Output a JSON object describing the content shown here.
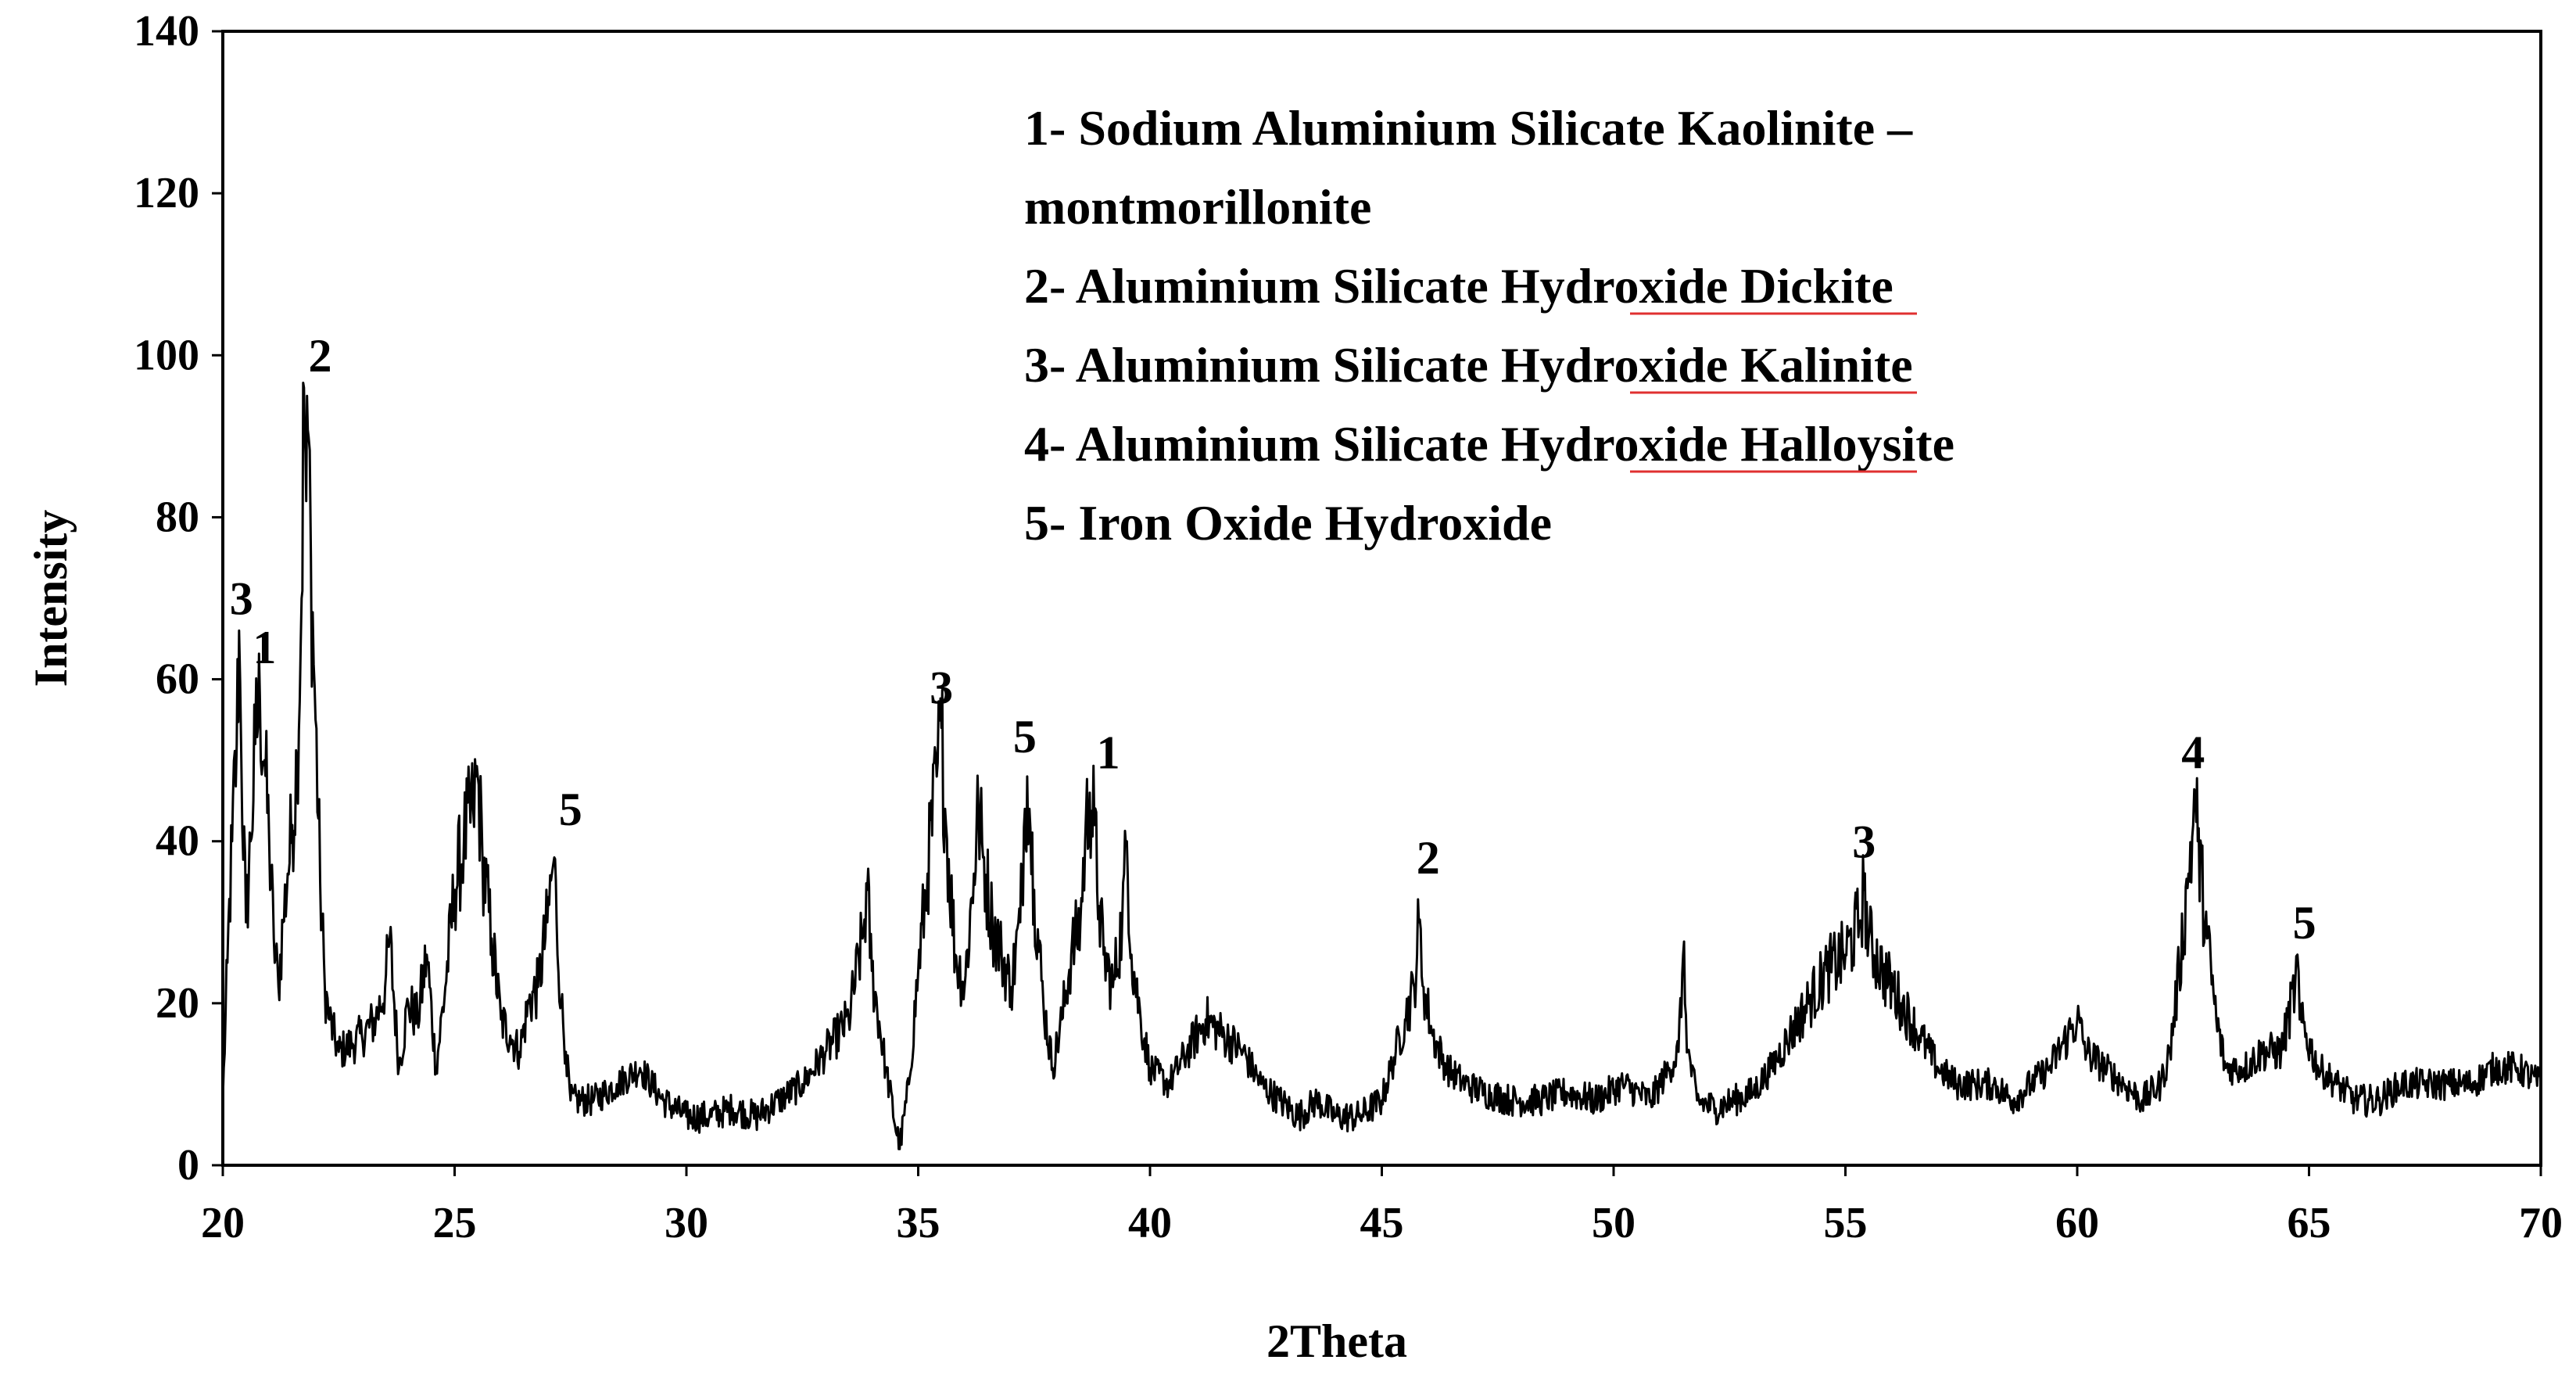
{
  "chart_data": {
    "type": "line",
    "title": "",
    "xlabel": "2Theta",
    "ylabel": "Intensity",
    "xlim": [
      20,
      70
    ],
    "ylim": [
      0,
      140
    ],
    "x_ticks": [
      "20",
      "25",
      "30",
      "35",
      "40",
      "45",
      "50",
      "55",
      "60",
      "65",
      "70"
    ],
    "y_ticks": [
      "0",
      "20",
      "40",
      "60",
      "80",
      "100",
      "120",
      "140"
    ],
    "grid": false,
    "line_color": "#000000",
    "series": [
      {
        "values": [
          [
            20.0,
            8
          ],
          [
            20.1,
            25
          ],
          [
            20.2,
            40
          ],
          [
            20.3,
            52
          ],
          [
            20.35,
            66
          ],
          [
            20.4,
            50
          ],
          [
            20.5,
            30
          ],
          [
            20.6,
            40
          ],
          [
            20.7,
            52
          ],
          [
            20.8,
            58
          ],
          [
            20.9,
            50
          ],
          [
            21.0,
            40
          ],
          [
            21.1,
            28
          ],
          [
            21.2,
            22
          ],
          [
            21.3,
            30
          ],
          [
            21.4,
            36
          ],
          [
            21.5,
            42
          ],
          [
            21.6,
            50
          ],
          [
            21.7,
            70
          ],
          [
            21.75,
            96
          ],
          [
            21.8,
            82
          ],
          [
            21.85,
            90
          ],
          [
            21.9,
            75
          ],
          [
            22.0,
            55
          ],
          [
            22.1,
            35
          ],
          [
            22.2,
            22
          ],
          [
            22.3,
            18
          ],
          [
            22.5,
            14
          ],
          [
            22.8,
            15
          ],
          [
            23.0,
            16
          ],
          [
            23.3,
            18
          ],
          [
            23.5,
            22
          ],
          [
            23.6,
            28
          ],
          [
            23.8,
            12
          ],
          [
            24.0,
            20
          ],
          [
            24.2,
            18
          ],
          [
            24.4,
            26
          ],
          [
            24.6,
            12
          ],
          [
            24.8,
            22
          ],
          [
            25.0,
            34
          ],
          [
            25.2,
            40
          ],
          [
            25.4,
            44
          ],
          [
            25.5,
            48
          ],
          [
            25.6,
            38
          ],
          [
            25.8,
            28
          ],
          [
            26.0,
            18
          ],
          [
            26.2,
            16
          ],
          [
            26.4,
            14
          ],
          [
            26.6,
            20
          ],
          [
            26.8,
            22
          ],
          [
            27.0,
            30
          ],
          [
            27.1,
            36
          ],
          [
            27.15,
            38
          ],
          [
            27.2,
            30
          ],
          [
            27.3,
            20
          ],
          [
            27.4,
            14
          ],
          [
            27.5,
            8
          ],
          [
            28.0,
            8
          ],
          [
            28.5,
            10
          ],
          [
            29.0,
            12
          ],
          [
            29.5,
            8
          ],
          [
            30.0,
            6
          ],
          [
            30.5,
            6
          ],
          [
            31.0,
            7
          ],
          [
            31.5,
            6
          ],
          [
            32.0,
            8
          ],
          [
            32.5,
            10
          ],
          [
            33.0,
            14
          ],
          [
            33.5,
            18
          ],
          [
            33.8,
            28
          ],
          [
            33.9,
            34
          ],
          [
            34.0,
            24
          ],
          [
            34.3,
            12
          ],
          [
            34.6,
            2
          ],
          [
            34.8,
            10
          ],
          [
            35.0,
            24
          ],
          [
            35.2,
            36
          ],
          [
            35.4,
            48
          ],
          [
            35.5,
            54
          ],
          [
            35.6,
            42
          ],
          [
            35.8,
            26
          ],
          [
            36.0,
            22
          ],
          [
            36.2,
            36
          ],
          [
            36.3,
            44
          ],
          [
            36.4,
            38
          ],
          [
            36.6,
            30
          ],
          [
            36.8,
            26
          ],
          [
            37.0,
            22
          ],
          [
            37.2,
            30
          ],
          [
            37.3,
            44
          ],
          [
            37.35,
            48
          ],
          [
            37.4,
            44
          ],
          [
            37.5,
            34
          ],
          [
            37.7,
            20
          ],
          [
            37.9,
            12
          ],
          [
            38.1,
            18
          ],
          [
            38.3,
            26
          ],
          [
            38.5,
            30
          ],
          [
            38.6,
            40
          ],
          [
            38.7,
            46
          ],
          [
            38.8,
            42
          ],
          [
            38.9,
            32
          ],
          [
            39.0,
            26
          ],
          [
            39.2,
            22
          ],
          [
            39.4,
            30
          ],
          [
            39.5,
            40
          ],
          [
            39.6,
            26
          ],
          [
            39.8,
            18
          ],
          [
            40.0,
            12
          ],
          [
            40.4,
            10
          ],
          [
            40.8,
            14
          ],
          [
            41.2,
            18
          ],
          [
            41.6,
            16
          ],
          [
            42.0,
            14
          ],
          [
            42.4,
            10
          ],
          [
            42.8,
            8
          ],
          [
            43.2,
            6
          ],
          [
            43.6,
            8
          ],
          [
            44.0,
            6
          ],
          [
            44.5,
            6
          ],
          [
            45.0,
            8
          ],
          [
            45.3,
            14
          ],
          [
            45.5,
            18
          ],
          [
            45.7,
            22
          ],
          [
            45.8,
            30
          ],
          [
            45.9,
            22
          ],
          [
            46.1,
            16
          ],
          [
            46.4,
            12
          ],
          [
            46.8,
            10
          ],
          [
            47.2,
            9
          ],
          [
            47.8,
            8
          ],
          [
            48.4,
            8
          ],
          [
            49.0,
            9
          ],
          [
            49.6,
            8
          ],
          [
            50.2,
            10
          ],
          [
            50.8,
            8
          ],
          [
            51.2,
            12
          ],
          [
            51.4,
            14
          ],
          [
            51.5,
            26
          ],
          [
            51.6,
            14
          ],
          [
            51.8,
            8
          ],
          [
            52.2,
            7
          ],
          [
            52.6,
            8
          ],
          [
            53.0,
            9
          ],
          [
            53.4,
            12
          ],
          [
            53.8,
            16
          ],
          [
            54.2,
            20
          ],
          [
            54.6,
            24
          ],
          [
            55.0,
            26
          ],
          [
            55.3,
            30
          ],
          [
            55.4,
            34
          ],
          [
            55.5,
            28
          ],
          [
            55.8,
            24
          ],
          [
            56.2,
            20
          ],
          [
            56.6,
            16
          ],
          [
            57.0,
            12
          ],
          [
            57.4,
            10
          ],
          [
            57.8,
            10
          ],
          [
            58.2,
            10
          ],
          [
            58.6,
            8
          ],
          [
            59.0,
            10
          ],
          [
            59.4,
            12
          ],
          [
            59.8,
            16
          ],
          [
            60.0,
            18
          ],
          [
            60.2,
            14
          ],
          [
            60.6,
            12
          ],
          [
            61.0,
            10
          ],
          [
            61.4,
            8
          ],
          [
            61.8,
            10
          ],
          [
            62.0,
            14
          ],
          [
            62.2,
            24
          ],
          [
            62.4,
            36
          ],
          [
            62.5,
            42
          ],
          [
            62.55,
            46
          ],
          [
            62.6,
            40
          ],
          [
            62.8,
            28
          ],
          [
            63.0,
            18
          ],
          [
            63.2,
            12
          ],
          [
            63.6,
            12
          ],
          [
            64.0,
            14
          ],
          [
            64.4,
            14
          ],
          [
            64.7,
            22
          ],
          [
            64.75,
            26
          ],
          [
            64.8,
            18
          ],
          [
            65.2,
            12
          ],
          [
            65.6,
            10
          ],
          [
            66.0,
            8
          ],
          [
            66.5,
            8
          ],
          [
            67.0,
            10
          ],
          [
            67.5,
            10
          ],
          [
            68.0,
            10
          ],
          [
            68.5,
            10
          ],
          [
            69.0,
            12
          ],
          [
            69.5,
            12
          ],
          [
            70.0,
            10
          ]
        ]
      }
    ],
    "annotations": [
      {
        "x": 20.4,
        "y": 68,
        "text": "3"
      },
      {
        "x": 20.9,
        "y": 62,
        "text": "1"
      },
      {
        "x": 22.1,
        "y": 98,
        "text": "2"
      },
      {
        "x": 27.5,
        "y": 42,
        "text": "5"
      },
      {
        "x": 35.5,
        "y": 57,
        "text": "3"
      },
      {
        "x": 37.3,
        "y": 51,
        "text": "5"
      },
      {
        "x": 39.1,
        "y": 49,
        "text": "1"
      },
      {
        "x": 46.0,
        "y": 36,
        "text": "2"
      },
      {
        "x": 55.4,
        "y": 38,
        "text": "3"
      },
      {
        "x": 62.5,
        "y": 49,
        "text": "4"
      },
      {
        "x": 64.9,
        "y": 28,
        "text": "5"
      }
    ],
    "legend_entries": [
      "1- Sodium Aluminium Silicate Kaolinite –",
      "montmorillonite",
      "2- Aluminium Silicate Hydroxide Dickite",
      "3- Aluminium Silicate Hydroxide Kalinite",
      "4- Aluminium Silicate Hydroxide Halloysite",
      "5- Iron Oxide Hydroxide"
    ],
    "legend_placement": "top-right"
  }
}
